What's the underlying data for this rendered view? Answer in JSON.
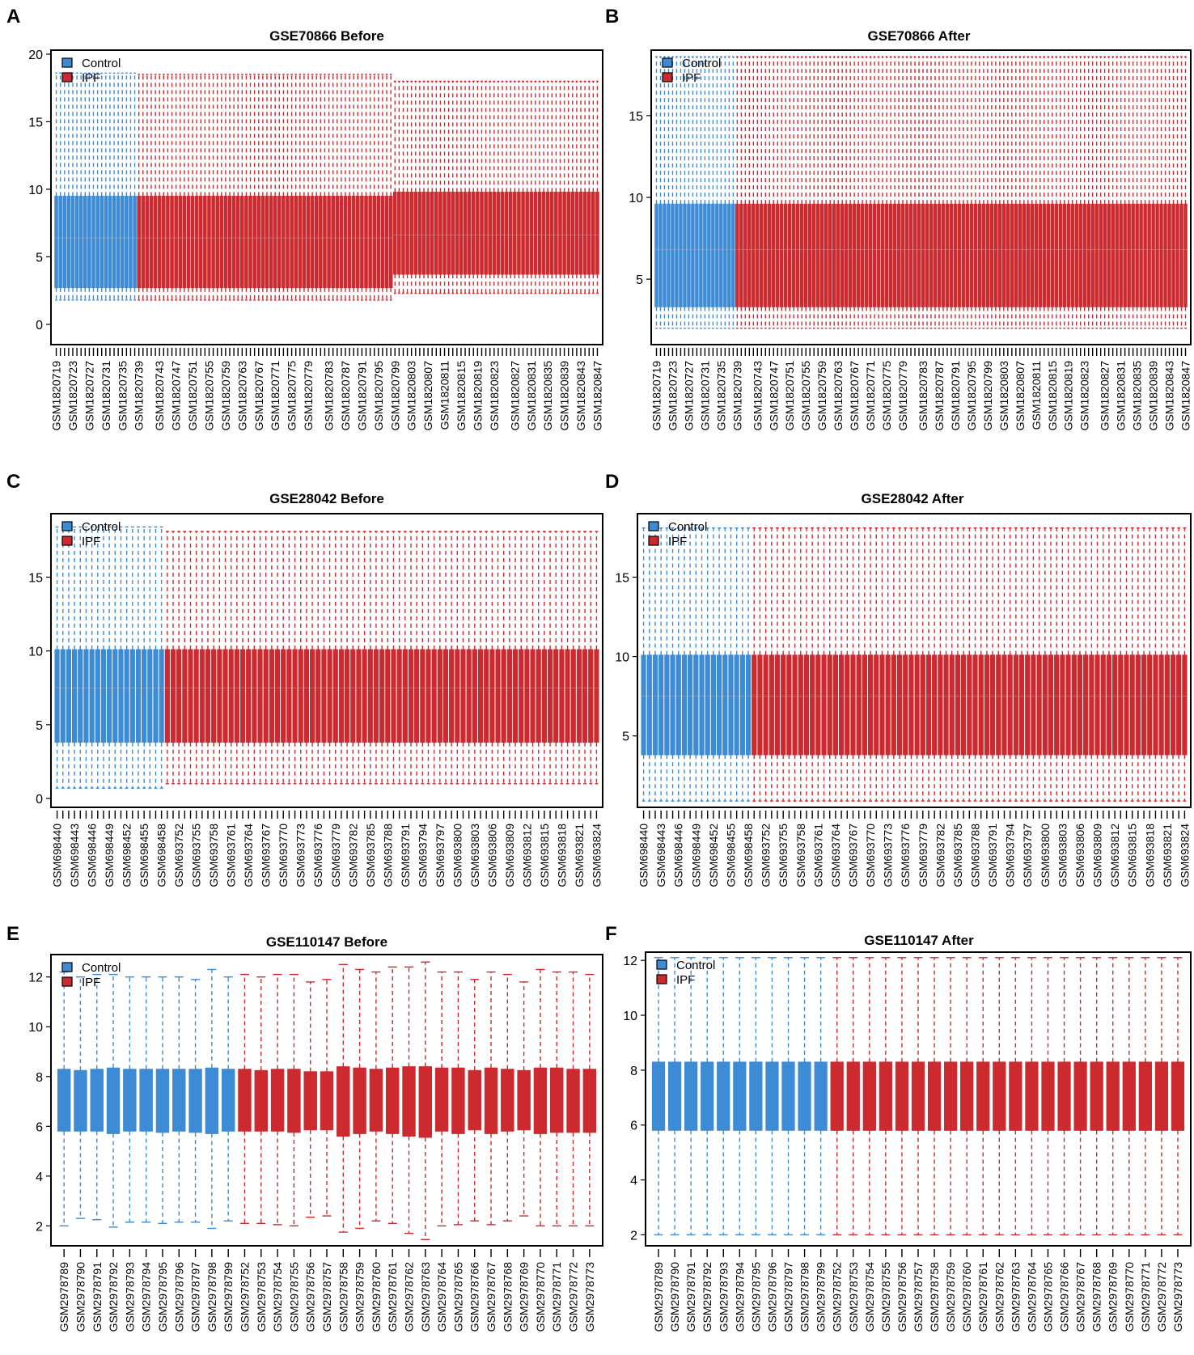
{
  "figure": {
    "legend_labels": [
      "Control",
      "IPF"
    ],
    "colors": {
      "control": "#3d8bd4",
      "ipf": "#cc2a2f",
      "frame": "#000000"
    }
  },
  "chart_data": [
    {
      "panel": "A",
      "type": "boxplot",
      "title": "GSE70866 Before",
      "ylim": [
        -1.5,
        20.3
      ],
      "yticks": [
        0,
        5,
        10,
        15,
        20
      ],
      "legend": [
        "Control",
        "IPF"
      ],
      "legend_position": "top-left",
      "n_control": 20,
      "n_ipf": 112,
      "control_box": {
        "q1": 2.7,
        "median": 6.4,
        "q3": 9.5,
        "lower_whisker": 1.8,
        "upper_whisker": 18.6
      },
      "ipf_box": {
        "q1": 2.7,
        "median": 6.4,
        "q3": 9.5,
        "lower_whisker": 1.8,
        "upper_whisker": 18.5
      },
      "ipf_shifted_from_index": 62,
      "ipf_shifted_box": {
        "q1": 3.7,
        "median": 6.6,
        "q3": 9.8,
        "lower_whisker": 2.3,
        "upper_whisker": 18.0
      },
      "x_tick_labels": [
        "GSM1820719",
        "GSM1820723",
        "GSM1820727",
        "GSM1820731",
        "GSM1820735",
        "GSM1820739",
        "GSM1820743",
        "GSM1820747",
        "GSM1820751",
        "GSM1820755",
        "GSM1820759",
        "GSM1820763",
        "GSM1820767",
        "GSM1820771",
        "GSM1820775",
        "GSM1820779",
        "GSM1820783",
        "GSM1820787",
        "GSM1820791",
        "GSM1820795",
        "GSM1820799",
        "GSM1820803",
        "GSM1820807",
        "GSM1820811",
        "GSM1820815",
        "GSM1820819",
        "GSM1820823",
        "GSM1820827",
        "GSM1820831",
        "GSM1820835",
        "GSM1820839",
        "GSM1820843",
        "GSM1820847"
      ]
    },
    {
      "panel": "B",
      "type": "boxplot",
      "title": "GSE70866 After",
      "ylim": [
        1.0,
        19.0
      ],
      "yticks": [
        5,
        10,
        15
      ],
      "legend": [
        "Control",
        "IPF"
      ],
      "legend_position": "top-left",
      "n_control": 20,
      "n_ipf": 112,
      "control_box": {
        "q1": 3.3,
        "median": 6.8,
        "q3": 9.6,
        "lower_whisker": 2.0,
        "upper_whisker": 18.6
      },
      "ipf_box": {
        "q1": 3.3,
        "median": 6.8,
        "q3": 9.6,
        "lower_whisker": 2.0,
        "upper_whisker": 18.6
      },
      "x_tick_labels": [
        "GSM1820719",
        "GSM1820723",
        "GSM1820727",
        "GSM1820731",
        "GSM1820735",
        "GSM1820739",
        "GSM1820743",
        "GSM1820747",
        "GSM1820751",
        "GSM1820755",
        "GSM1820759",
        "GSM1820763",
        "GSM1820767",
        "GSM1820771",
        "GSM1820775",
        "GSM1820779",
        "GSM1820783",
        "GSM1820787",
        "GSM1820791",
        "GSM1820795",
        "GSM1820799",
        "GSM1820803",
        "GSM1820807",
        "GSM1820811",
        "GSM1820815",
        "GSM1820819",
        "GSM1820823",
        "GSM1820827",
        "GSM1820831",
        "GSM1820835",
        "GSM1820839",
        "GSM1820843",
        "GSM1820847"
      ]
    },
    {
      "panel": "C",
      "type": "boxplot",
      "title": "GSE28042 Before",
      "ylim": [
        -0.6,
        19.3
      ],
      "yticks": [
        0,
        5,
        10,
        15
      ],
      "legend": [
        "Control",
        "IPF"
      ],
      "legend_position": "top-left",
      "n_control": 19,
      "n_ipf": 75,
      "control_box": {
        "q1": 3.8,
        "median": 7.5,
        "q3": 10.1,
        "lower_whisker": 0.7,
        "upper_whisker": 18.4
      },
      "ipf_box": {
        "q1": 3.8,
        "median": 7.5,
        "q3": 10.1,
        "lower_whisker": 1.0,
        "upper_whisker": 18.1
      },
      "x_tick_labels": [
        "GSM698440",
        "GSM698443",
        "GSM698446",
        "GSM698449",
        "GSM698452",
        "GSM698455",
        "GSM698458",
        "GSM693752",
        "GSM693755",
        "GSM693758",
        "GSM693761",
        "GSM693764",
        "GSM693767",
        "GSM693770",
        "GSM693773",
        "GSM693776",
        "GSM693779",
        "GSM693782",
        "GSM693785",
        "GSM693788",
        "GSM693791",
        "GSM693794",
        "GSM693797",
        "GSM693800",
        "GSM693803",
        "GSM693806",
        "GSM693809",
        "GSM693812",
        "GSM693815",
        "GSM693818",
        "GSM693821",
        "GSM693824"
      ]
    },
    {
      "panel": "D",
      "type": "boxplot",
      "title": "GSE28042 After",
      "ylim": [
        0.5,
        19.0
      ],
      "yticks": [
        5,
        10,
        15
      ],
      "legend": [
        "Control",
        "IPF"
      ],
      "legend_position": "top-left",
      "n_control": 19,
      "n_ipf": 75,
      "control_box": {
        "q1": 3.8,
        "median": 7.5,
        "q3": 10.1,
        "lower_whisker": 0.9,
        "upper_whisker": 18.1
      },
      "ipf_box": {
        "q1": 3.8,
        "median": 7.5,
        "q3": 10.1,
        "lower_whisker": 0.9,
        "upper_whisker": 18.1
      },
      "x_tick_labels": [
        "GSM698440",
        "GSM698443",
        "GSM698446",
        "GSM698449",
        "GSM698452",
        "GSM698455",
        "GSM698458",
        "GSM693752",
        "GSM693755",
        "GSM693758",
        "GSM693761",
        "GSM693764",
        "GSM693767",
        "GSM693770",
        "GSM693773",
        "GSM693776",
        "GSM693779",
        "GSM693782",
        "GSM693785",
        "GSM693788",
        "GSM693791",
        "GSM693794",
        "GSM693797",
        "GSM693800",
        "GSM693803",
        "GSM693806",
        "GSM693809",
        "GSM693812",
        "GSM693815",
        "GSM693818",
        "GSM693821",
        "GSM693824"
      ]
    },
    {
      "panel": "E",
      "type": "boxplot",
      "title": "GSE110147 Before",
      "ylim": [
        1.2,
        12.9
      ],
      "yticks": [
        2,
        4,
        6,
        8,
        10,
        12
      ],
      "legend": [
        "Control",
        "IPF"
      ],
      "legend_position": "top-left",
      "n_control": 11,
      "n_ipf": 22,
      "x_tick_labels": [
        "GSM2978789",
        "GSM2978790",
        "GSM2978791",
        "GSM2978792",
        "GSM2978793",
        "GSM2978794",
        "GSM2978795",
        "GSM2978796",
        "GSM2978797",
        "GSM2978798",
        "GSM2978799",
        "GSM2978752",
        "GSM2978753",
        "GSM2978754",
        "GSM2978755",
        "GSM2978756",
        "GSM2978757",
        "GSM2978758",
        "GSM2978759",
        "GSM2978760",
        "GSM2978761",
        "GSM2978762",
        "GSM2978763",
        "GSM2978764",
        "GSM2978765",
        "GSM2978766",
        "GSM2978767",
        "GSM2978768",
        "GSM2978769",
        "GSM2978770",
        "GSM2978771",
        "GSM2978772",
        "GSM2978773"
      ],
      "boxes": [
        {
          "q1": 5.8,
          "q3": 8.3,
          "lower_whisker": 2.0,
          "upper_whisker": 12.2
        },
        {
          "q1": 5.8,
          "q3": 8.25,
          "lower_whisker": 2.3,
          "upper_whisker": 12.0
        },
        {
          "q1": 5.8,
          "q3": 8.3,
          "lower_whisker": 2.25,
          "upper_whisker": 12.1
        },
        {
          "q1": 5.7,
          "q3": 8.35,
          "lower_whisker": 1.95,
          "upper_whisker": 12.1
        },
        {
          "q1": 5.8,
          "q3": 8.3,
          "lower_whisker": 2.15,
          "upper_whisker": 12.0
        },
        {
          "q1": 5.8,
          "q3": 8.3,
          "lower_whisker": 2.15,
          "upper_whisker": 12.0
        },
        {
          "q1": 5.75,
          "q3": 8.3,
          "lower_whisker": 2.1,
          "upper_whisker": 12.0
        },
        {
          "q1": 5.8,
          "q3": 8.3,
          "lower_whisker": 2.15,
          "upper_whisker": 12.0
        },
        {
          "q1": 5.75,
          "q3": 8.3,
          "lower_whisker": 2.15,
          "upper_whisker": 11.9
        },
        {
          "q1": 5.7,
          "q3": 8.35,
          "lower_whisker": 1.9,
          "upper_whisker": 12.3
        },
        {
          "q1": 5.8,
          "q3": 8.3,
          "lower_whisker": 2.2,
          "upper_whisker": 12.0
        },
        {
          "q1": 5.8,
          "q3": 8.3,
          "lower_whisker": 2.1,
          "upper_whisker": 12.1
        },
        {
          "q1": 5.8,
          "q3": 8.25,
          "lower_whisker": 2.1,
          "upper_whisker": 12.0
        },
        {
          "q1": 5.8,
          "q3": 8.3,
          "lower_whisker": 2.05,
          "upper_whisker": 12.1
        },
        {
          "q1": 5.75,
          "q3": 8.3,
          "lower_whisker": 2.0,
          "upper_whisker": 12.1
        },
        {
          "q1": 5.85,
          "q3": 8.2,
          "lower_whisker": 2.35,
          "upper_whisker": 11.8
        },
        {
          "q1": 5.85,
          "q3": 8.2,
          "lower_whisker": 2.4,
          "upper_whisker": 11.9
        },
        {
          "q1": 5.6,
          "q3": 8.4,
          "lower_whisker": 1.75,
          "upper_whisker": 12.5
        },
        {
          "q1": 5.7,
          "q3": 8.35,
          "lower_whisker": 1.9,
          "upper_whisker": 12.3
        },
        {
          "q1": 5.8,
          "q3": 8.3,
          "lower_whisker": 2.2,
          "upper_whisker": 12.2
        },
        {
          "q1": 5.7,
          "q3": 8.35,
          "lower_whisker": 2.1,
          "upper_whisker": 12.4
        },
        {
          "q1": 5.6,
          "q3": 8.4,
          "lower_whisker": 1.7,
          "upper_whisker": 12.4
        },
        {
          "q1": 5.55,
          "q3": 8.4,
          "lower_whisker": 1.45,
          "upper_whisker": 12.6
        },
        {
          "q1": 5.8,
          "q3": 8.35,
          "lower_whisker": 2.0,
          "upper_whisker": 12.2
        },
        {
          "q1": 5.7,
          "q3": 8.35,
          "lower_whisker": 2.05,
          "upper_whisker": 12.2
        },
        {
          "q1": 5.85,
          "q3": 8.25,
          "lower_whisker": 2.2,
          "upper_whisker": 11.9
        },
        {
          "q1": 5.7,
          "q3": 8.35,
          "lower_whisker": 2.05,
          "upper_whisker": 12.2
        },
        {
          "q1": 5.8,
          "q3": 8.3,
          "lower_whisker": 2.2,
          "upper_whisker": 12.1
        },
        {
          "q1": 5.85,
          "q3": 8.25,
          "lower_whisker": 2.4,
          "upper_whisker": 11.8
        },
        {
          "q1": 5.7,
          "q3": 8.35,
          "lower_whisker": 2.0,
          "upper_whisker": 12.3
        },
        {
          "q1": 5.75,
          "q3": 8.35,
          "lower_whisker": 2.0,
          "upper_whisker": 12.2
        },
        {
          "q1": 5.75,
          "q3": 8.3,
          "lower_whisker": 2.0,
          "upper_whisker": 12.2
        },
        {
          "q1": 5.75,
          "q3": 8.3,
          "lower_whisker": 2.0,
          "upper_whisker": 12.1
        }
      ]
    },
    {
      "panel": "F",
      "type": "boxplot",
      "title": "GSE110147 After",
      "ylim": [
        1.6,
        12.3
      ],
      "yticks": [
        2,
        4,
        6,
        8,
        10,
        12
      ],
      "legend": [
        "Control",
        "IPF"
      ],
      "legend_position": "top-left",
      "n_control": 11,
      "n_ipf": 22,
      "control_box": {
        "q1": 5.8,
        "median": 7.1,
        "q3": 8.3,
        "lower_whisker": 2.0,
        "upper_whisker": 12.1
      },
      "ipf_box": {
        "q1": 5.8,
        "median": 7.1,
        "q3": 8.3,
        "lower_whisker": 2.0,
        "upper_whisker": 12.1
      },
      "x_tick_labels": [
        "GSM2978789",
        "GSM2978790",
        "GSM2978791",
        "GSM2978792",
        "GSM2978793",
        "GSM2978794",
        "GSM2978795",
        "GSM2978796",
        "GSM2978797",
        "GSM2978798",
        "GSM2978799",
        "GSM2978752",
        "GSM2978753",
        "GSM2978754",
        "GSM2978755",
        "GSM2978756",
        "GSM2978757",
        "GSM2978758",
        "GSM2978759",
        "GSM2978760",
        "GSM2978761",
        "GSM2978762",
        "GSM2978763",
        "GSM2978764",
        "GSM2978765",
        "GSM2978766",
        "GSM2978767",
        "GSM2978768",
        "GSM2978769",
        "GSM2978770",
        "GSM2978771",
        "GSM2978772",
        "GSM2978773"
      ]
    }
  ]
}
